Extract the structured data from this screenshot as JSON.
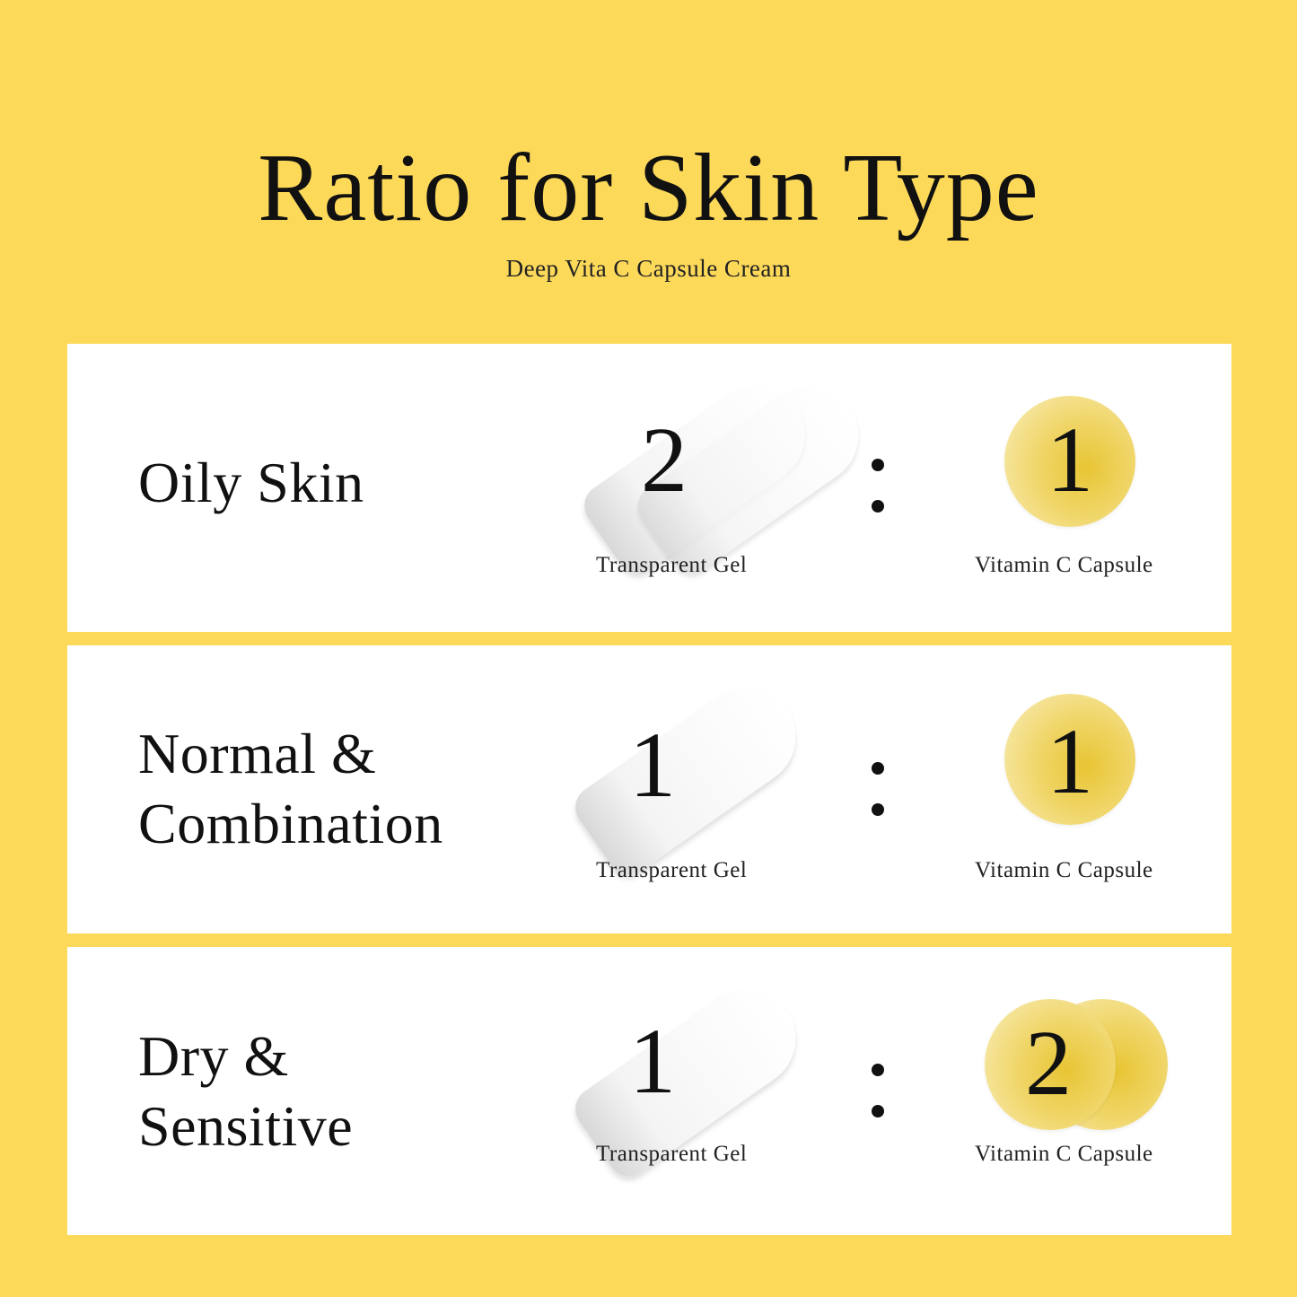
{
  "header": {
    "title": "Ratio for Skin Type",
    "subtitle": "Deep Vita C Capsule Cream"
  },
  "colors": {
    "background": "#FDD95A",
    "panel": "#FFFFFF",
    "capsule": "#E8C534"
  },
  "rows": [
    {
      "skin_lines": [
        "Oily Skin"
      ],
      "gel_ratio": "2",
      "separator": ":",
      "capsule_ratio": "1",
      "gel_label": "Transparent Gel",
      "capsule_label": "Vitamin C Capsule"
    },
    {
      "skin_lines": [
        "Normal &",
        "Combination"
      ],
      "gel_ratio": "1",
      "separator": ":",
      "capsule_ratio": "1",
      "gel_label": "Transparent Gel",
      "capsule_label": "Vitamin C Capsule"
    },
    {
      "skin_lines": [
        "Dry &",
        "Sensitive"
      ],
      "gel_ratio": "1",
      "separator": ":",
      "capsule_ratio": "2",
      "gel_label": "Transparent Gel",
      "capsule_label": "Vitamin C Capsule"
    }
  ]
}
